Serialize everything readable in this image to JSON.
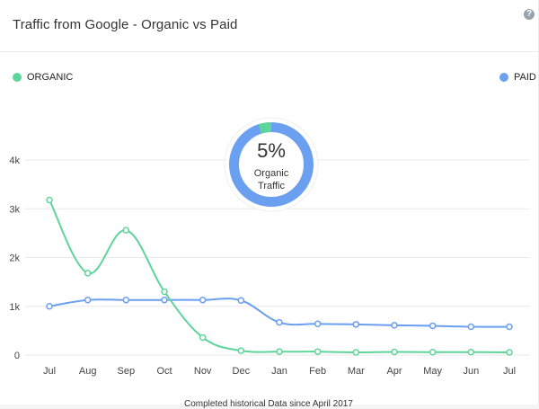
{
  "widget": {
    "title": "Traffic from Google - Organic vs Paid",
    "help_icon": "question-icon",
    "footnote": "Completed historical Data since April 2017"
  },
  "colors": {
    "organic": "#5ed59a",
    "paid": "#6b9ff0",
    "grid": "#e9e9e9",
    "axis_text": "#444444"
  },
  "donut": {
    "value_label": "5%",
    "caption_line1": "Organic",
    "caption_line2": "Traffic",
    "organic_share": 0.05
  },
  "chart_data": {
    "type": "line",
    "categories": [
      "Jul",
      "Aug",
      "Sep",
      "Oct",
      "Nov",
      "Dec",
      "Jan",
      "Feb",
      "Mar",
      "Apr",
      "May",
      "Jun",
      "Jul"
    ],
    "y_ticks": [
      "0",
      "1k",
      "2k",
      "3k",
      "4k"
    ],
    "ylim": [
      0,
      4000
    ],
    "series": [
      {
        "name": "ORGANIC",
        "color_key": "organic",
        "values": [
          3180,
          1680,
          2560,
          1300,
          360,
          90,
          70,
          70,
          55,
          65,
          60,
          60,
          55
        ]
      },
      {
        "name": "PAID",
        "color_key": "paid",
        "values": [
          1000,
          1130,
          1130,
          1130,
          1130,
          1120,
          670,
          640,
          630,
          610,
          600,
          580,
          580
        ]
      }
    ],
    "grid": true,
    "legend": "top-left and top-right"
  }
}
